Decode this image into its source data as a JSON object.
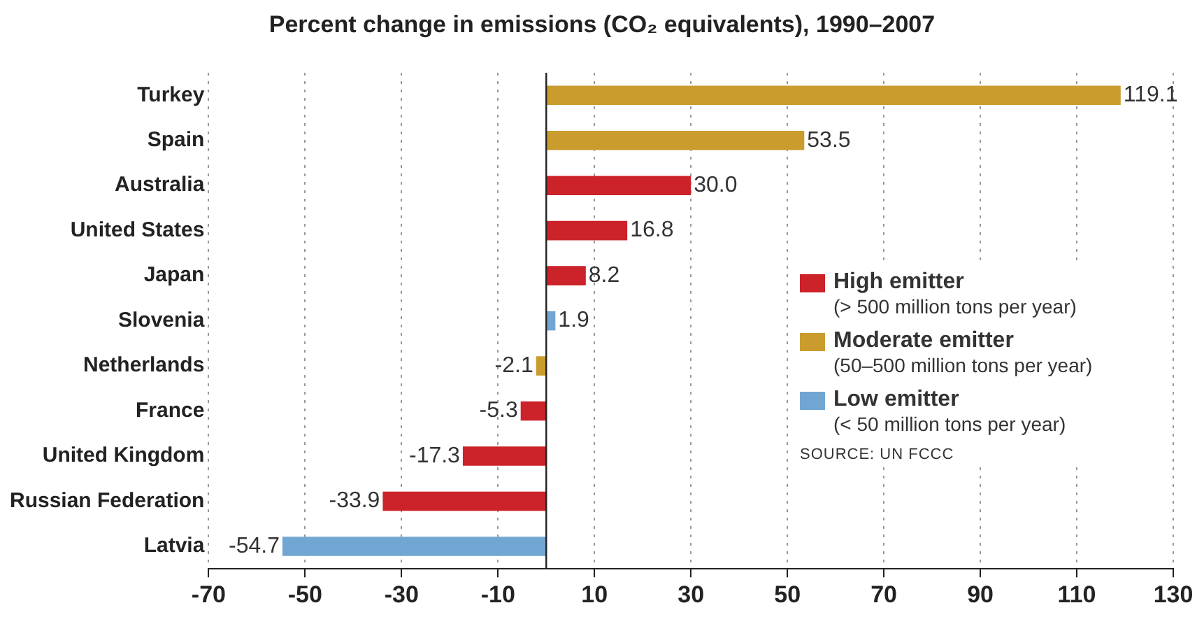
{
  "chart_data": {
    "type": "bar",
    "orientation": "horizontal",
    "stacked": true,
    "title": "Percent change in emissions (CO₂ equivalents), 1990–2007",
    "categories": [
      "Turkey",
      "Spain",
      "Australia",
      "United States",
      "Japan",
      "Slovenia",
      "Netherlands",
      "France",
      "United Kingdom",
      "Russian Federation",
      "Latvia"
    ],
    "series": [
      {
        "name": "High emitter\n(> 500 million tons per year)",
        "color": "#cc2229",
        "values": [
          null,
          null,
          30.0,
          16.8,
          8.2,
          null,
          null,
          -5.3,
          -17.3,
          -33.9,
          null
        ],
        "value_labels": [
          null,
          null,
          "30.0",
          "16.8",
          "8.2",
          null,
          null,
          "-5.3",
          "-17.3",
          "-33.9",
          null
        ]
      },
      {
        "name": "Moderate emitter\n(50–500 million tons per year)",
        "color": "#c99c2d",
        "values": [
          119.1,
          53.5,
          null,
          null,
          null,
          null,
          -2.1,
          null,
          null,
          null,
          null
        ],
        "value_labels": [
          "119.1",
          "53.5",
          null,
          null,
          null,
          null,
          "-2.1",
          null,
          null,
          null,
          null
        ]
      },
      {
        "name": "Low emitter\n(< 50 million tons per year)",
        "color": "#72a6d2",
        "values": [
          null,
          null,
          null,
          null,
          null,
          1.9,
          null,
          null,
          null,
          null,
          -54.7
        ],
        "value_labels": [
          null,
          null,
          null,
          null,
          null,
          "1.9",
          null,
          null,
          null,
          null,
          "-54.7"
        ]
      }
    ],
    "xlim": [
      -70,
      130
    ],
    "xticks": [
      -70,
      -50,
      -30,
      -10,
      10,
      30,
      50,
      70,
      90,
      110,
      130
    ],
    "grid": "x",
    "legend": "right",
    "annotations": [
      "SOURCE: UN FCCC"
    ]
  }
}
